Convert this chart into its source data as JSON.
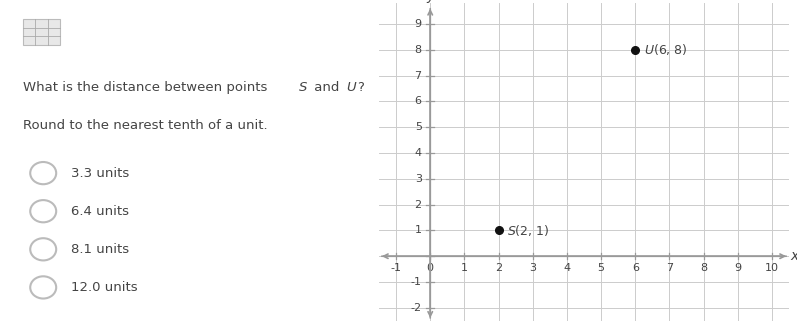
{
  "question_line1a": "What is the distance between points ",
  "question_S": "S",
  "question_mid": " and ",
  "question_U": "U",
  "question_end": "?",
  "question_line2": "Round to the nearest tenth of a unit.",
  "options": [
    "3.3 units",
    "6.4 units",
    "8.1 units",
    "12.0 units"
  ],
  "point_S": [
    2,
    1
  ],
  "point_U": [
    6,
    8
  ],
  "xlim": [
    -1.5,
    10.5
  ],
  "ylim": [
    -2.5,
    9.8
  ],
  "xticks": [
    -1,
    0,
    1,
    2,
    3,
    4,
    5,
    6,
    7,
    8,
    9,
    10
  ],
  "yticks": [
    -2,
    -1,
    0,
    1,
    2,
    3,
    4,
    5,
    6,
    7,
    8,
    9
  ],
  "xlabel": "x",
  "ylabel": "y",
  "grid_color": "#cccccc",
  "axis_color": "#999999",
  "point_color": "#111111",
  "bg_color": "#ffffff",
  "text_color": "#444444",
  "radio_color": "#bbbbbb",
  "radio_inner": "#dddddd"
}
